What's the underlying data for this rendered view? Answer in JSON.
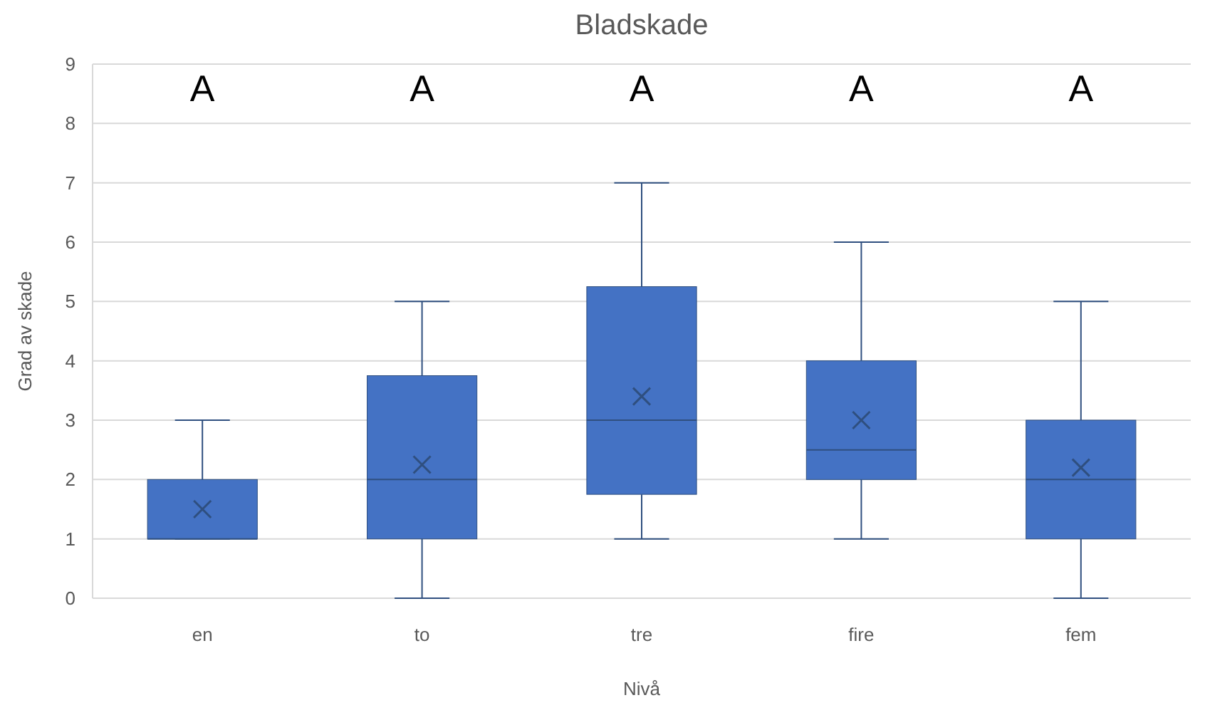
{
  "chart_data": {
    "type": "box",
    "title": "Bladskade",
    "xlabel": "Nivå",
    "ylabel": "Grad av skade",
    "categories": [
      "en",
      "to",
      "tre",
      "fire",
      "fem"
    ],
    "boxes": [
      {
        "low": 1,
        "q1": 1,
        "median": 1,
        "q3": 2,
        "high": 3,
        "mean": 1.5
      },
      {
        "low": 0,
        "q1": 1,
        "median": 2,
        "q3": 3.75,
        "high": 5,
        "mean": 2.25
      },
      {
        "low": 1,
        "q1": 1.75,
        "median": 3,
        "q3": 5.25,
        "high": 7,
        "mean": 3.4
      },
      {
        "low": 1,
        "q1": 2,
        "median": 2.5,
        "q3": 4,
        "high": 6,
        "mean": 3
      },
      {
        "low": 0,
        "q1": 1,
        "median": 2,
        "q3": 3,
        "high": 5,
        "mean": 2.2
      }
    ],
    "color": "#4472c4",
    "ylim": [
      0,
      9
    ],
    "yticks": [
      0,
      1,
      2,
      3,
      4,
      5,
      6,
      7,
      8,
      9
    ],
    "grid": "y",
    "annotations": [
      "A",
      "A",
      "A",
      "A",
      "A"
    ]
  }
}
